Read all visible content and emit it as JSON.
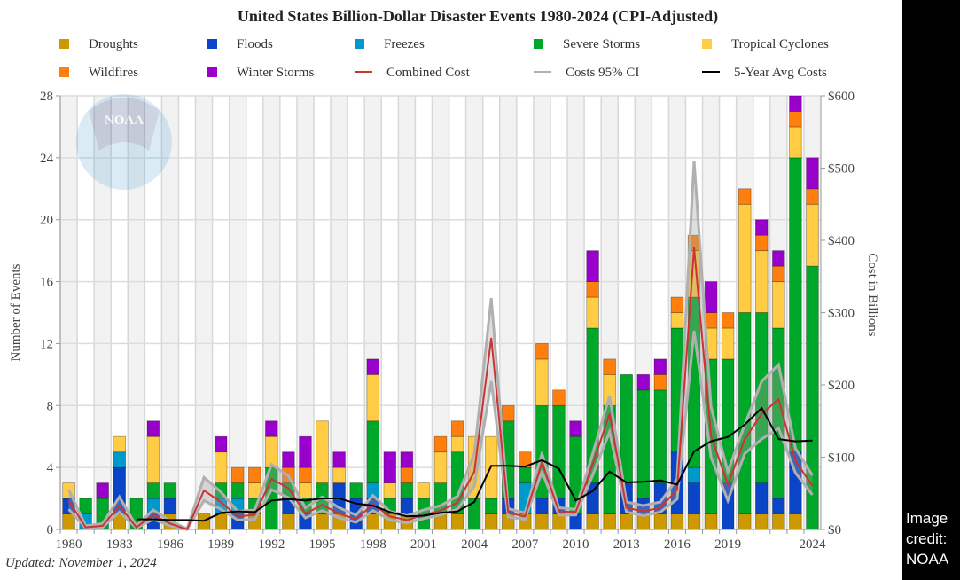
{
  "updated": "Updated: November 1, 2024",
  "credit": "Image credit: NOAA",
  "watermark": "NOAA",
  "colors": {
    "droughts": "#cc9900",
    "floods": "#0a45c8",
    "freezes": "#0099cc",
    "severe": "#00a82a",
    "tropical": "#ffcc44",
    "wildfires": "#ff7f0e",
    "winter": "#9900cc",
    "combined": "#cc3333",
    "ci": "#b0b0b0",
    "avg": "#000000"
  },
  "legend": [
    {
      "key": "droughts",
      "label": "Droughts",
      "kind": "swatch"
    },
    {
      "key": "floods",
      "label": "Floods",
      "kind": "swatch"
    },
    {
      "key": "freezes",
      "label": "Freezes",
      "kind": "swatch"
    },
    {
      "key": "severe",
      "label": "Severe Storms",
      "kind": "swatch"
    },
    {
      "key": "tropical",
      "label": "Tropical Cyclones",
      "kind": "swatch"
    },
    {
      "key": "wildfires",
      "label": "Wildfires",
      "kind": "swatch"
    },
    {
      "key": "winter",
      "label": "Winter Storms",
      "kind": "swatch"
    },
    {
      "key": "combined",
      "label": "Combined Cost",
      "kind": "line"
    },
    {
      "key": "ci",
      "label": "Costs 95% CI",
      "kind": "line"
    },
    {
      "key": "avg",
      "label": "5-Year Avg Costs",
      "kind": "line"
    }
  ],
  "chart_data": {
    "type": "bar",
    "title": "United States Billion-Dollar Disaster Events 1980-2024 (CPI-Adjusted)",
    "xlabel": "",
    "ylabel": "Number of Events",
    "y2label": "Cost in Billions",
    "ylim": [
      0,
      28
    ],
    "y2lim": [
      0,
      600
    ],
    "yticks": [
      0,
      4,
      8,
      12,
      16,
      20,
      24,
      28
    ],
    "y2ticks": [
      "$0",
      "$100",
      "$200",
      "$300",
      "$400",
      "$500",
      "$600"
    ],
    "xticks": [
      "1980",
      "1983",
      "1986",
      "1989",
      "1992",
      "1995",
      "1998",
      "2001",
      "2004",
      "2007",
      "2010",
      "2013",
      "2016",
      "2019",
      "2024"
    ],
    "grid": true,
    "legend_position": "top",
    "categories": [
      1980,
      1981,
      1982,
      1983,
      1984,
      1985,
      1986,
      1987,
      1988,
      1989,
      1990,
      1991,
      1992,
      1993,
      1994,
      1995,
      1996,
      1997,
      1998,
      1999,
      2000,
      2001,
      2002,
      2003,
      2004,
      2005,
      2006,
      2007,
      2008,
      2009,
      2010,
      2011,
      2012,
      2013,
      2014,
      2015,
      2016,
      2017,
      2018,
      2019,
      2020,
      2021,
      2022,
      2023,
      2024
    ],
    "series": [
      {
        "name": "Droughts",
        "key": "droughts",
        "values": [
          1,
          0,
          0,
          1,
          0,
          0,
          1,
          0,
          1,
          1,
          0,
          1,
          0,
          1,
          0,
          1,
          1,
          0,
          1,
          1,
          1,
          0,
          1,
          1,
          0,
          1,
          1,
          1,
          1,
          1,
          0,
          1,
          1,
          1,
          1,
          1,
          1,
          1,
          1,
          0,
          1,
          1,
          1,
          1,
          0
        ]
      },
      {
        "name": "Floods",
        "key": "floods",
        "values": [
          1,
          0,
          0,
          3,
          0,
          1,
          1,
          0,
          0,
          0,
          1,
          0,
          0,
          1,
          1,
          0,
          2,
          2,
          1,
          0,
          1,
          0,
          0,
          0,
          0,
          0,
          1,
          0,
          1,
          1,
          1,
          2,
          0,
          2,
          1,
          2,
          4,
          2,
          0,
          3,
          0,
          2,
          1,
          4,
          0
        ]
      },
      {
        "name": "Freezes",
        "key": "freezes",
        "values": [
          0,
          1,
          0,
          1,
          0,
          1,
          0,
          0,
          0,
          1,
          1,
          0,
          0,
          0,
          0,
          0,
          0,
          0,
          1,
          0,
          0,
          0,
          0,
          0,
          0,
          0,
          0,
          2,
          0,
          0,
          0,
          0,
          0,
          0,
          0,
          0,
          0,
          1,
          0,
          0,
          0,
          0,
          0,
          0,
          0
        ]
      },
      {
        "name": "Severe Storms",
        "key": "severe",
        "values": [
          0,
          1,
          2,
          0,
          2,
          1,
          1,
          0,
          0,
          1,
          1,
          1,
          4,
          1,
          1,
          2,
          0,
          1,
          4,
          1,
          1,
          2,
          2,
          4,
          2,
          1,
          5,
          1,
          6,
          6,
          5,
          10,
          7,
          7,
          7,
          6,
          8,
          11,
          10,
          8,
          13,
          11,
          11,
          19,
          17
        ]
      },
      {
        "name": "Tropical Cyclones",
        "key": "tropical",
        "values": [
          1,
          0,
          0,
          1,
          0,
          3,
          0,
          0,
          0,
          2,
          0,
          1,
          2,
          0,
          1,
          4,
          1,
          0,
          3,
          1,
          0,
          1,
          2,
          1,
          4,
          4,
          0,
          0,
          3,
          0,
          0,
          2,
          2,
          0,
          0,
          0,
          1,
          3,
          2,
          2,
          7,
          4,
          3,
          2,
          4
        ]
      },
      {
        "name": "Wildfires",
        "key": "wildfires",
        "values": [
          0,
          0,
          0,
          0,
          0,
          0,
          0,
          0,
          0,
          0,
          1,
          1,
          0,
          1,
          1,
          0,
          0,
          0,
          0,
          0,
          1,
          0,
          1,
          1,
          0,
          0,
          1,
          1,
          1,
          1,
          0,
          1,
          1,
          0,
          0,
          1,
          1,
          1,
          1,
          1,
          1,
          1,
          1,
          1,
          1
        ]
      },
      {
        "name": "Winter Storms",
        "key": "winter",
        "values": [
          0,
          0,
          1,
          0,
          0,
          1,
          0,
          0,
          0,
          1,
          0,
          0,
          1,
          1,
          2,
          0,
          1,
          0,
          1,
          2,
          1,
          0,
          0,
          0,
          0,
          0,
          0,
          0,
          0,
          0,
          1,
          2,
          0,
          0,
          1,
          1,
          0,
          0,
          2,
          0,
          0,
          1,
          1,
          1,
          2
        ]
      }
    ],
    "lines": [
      {
        "name": "Combined Cost",
        "key": "combined",
        "unit": "billions USD",
        "values": [
          40,
          3,
          5,
          33,
          3,
          20,
          8,
          0,
          54,
          38,
          18,
          20,
          70,
          57,
          22,
          34,
          22,
          14,
          35,
          18,
          13,
          20,
          26,
          37,
          80,
          265,
          23,
          18,
          93,
          25,
          24,
          90,
          160,
          30,
          25,
          30,
          55,
          390,
          130,
          62,
          125,
          160,
          180,
          95,
          60
        ]
      },
      {
        "name": "Costs 95% CI (upper)",
        "key": "ci",
        "unit": "billions USD",
        "values": [
          55,
          5,
          8,
          45,
          5,
          27,
          12,
          1,
          72,
          52,
          25,
          27,
          90,
          74,
          30,
          45,
          30,
          20,
          47,
          25,
          19,
          27,
          33,
          46,
          105,
          320,
          29,
          23,
          105,
          30,
          28,
          105,
          185,
          38,
          33,
          38,
          70,
          510,
          170,
          80,
          145,
          205,
          228,
          112,
          75
        ]
      },
      {
        "name": "Costs 95% CI (lower)",
        "key": "ci",
        "unit": "billions USD",
        "values": [
          28,
          2,
          3,
          24,
          2,
          14,
          5,
          0,
          40,
          28,
          13,
          14,
          55,
          44,
          16,
          26,
          16,
          10,
          26,
          13,
          9,
          15,
          20,
          28,
          60,
          205,
          17,
          14,
          80,
          20,
          20,
          75,
          135,
          24,
          19,
          24,
          42,
          275,
          100,
          40,
          105,
          125,
          140,
          78,
          48
        ]
      },
      {
        "name": "5-Year Avg Costs",
        "key": "avg",
        "unit": "billions USD",
        "values": [
          null,
          null,
          null,
          null,
          14,
          14,
          13,
          13,
          12,
          23,
          25,
          24,
          40,
          42,
          40,
          43,
          43,
          36,
          33,
          24,
          18,
          19,
          23,
          25,
          38,
          88,
          88,
          87,
          96,
          84,
          40,
          53,
          80,
          65,
          66,
          68,
          62,
          108,
          122,
          128,
          145,
          168,
          125,
          122,
          123
        ]
      }
    ]
  }
}
